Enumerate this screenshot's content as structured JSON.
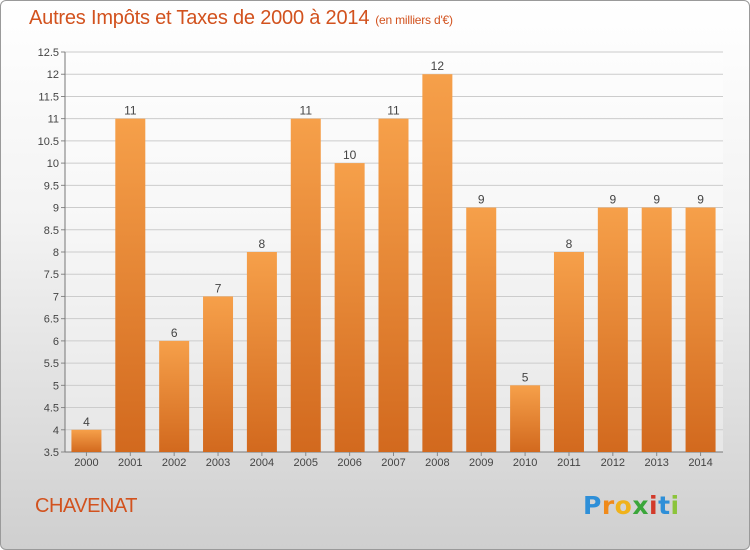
{
  "header": {
    "title": "Autres Impôts et Taxes de 2000 à 2014",
    "unit": "(en milliers d'€)"
  },
  "footer": {
    "city": "CHAVENAT",
    "logo": {
      "letters": [
        "P",
        "r",
        "o",
        "x",
        "i",
        "t",
        "i"
      ],
      "colors": [
        "#2e8fd8",
        "#f08a1a",
        "#f0b21a",
        "#3aa63a",
        "#d23a2a",
        "#2e8fd8",
        "#8cc43a"
      ]
    }
  },
  "colors": {
    "bar_top": "#f6a04a",
    "bar_bottom": "#d2691e",
    "title": "#d2521e",
    "grid": "#cccccc",
    "label": "#444444"
  },
  "chart_data": {
    "type": "bar",
    "categories": [
      "2000",
      "2001",
      "2002",
      "2003",
      "2004",
      "2005",
      "2006",
      "2007",
      "2008",
      "2009",
      "2010",
      "2011",
      "2012",
      "2013",
      "2014"
    ],
    "values": [
      4,
      11,
      6,
      7,
      8,
      11,
      10,
      11,
      12,
      9,
      5,
      8,
      9,
      9,
      9
    ],
    "data_labels": [
      "4",
      "11",
      "6",
      "7",
      "8",
      "11",
      "10",
      "11",
      "12",
      "9",
      "5",
      "8",
      "9",
      "9",
      "9"
    ],
    "y_ticks": [
      "3.5",
      "4",
      "4.5",
      "5",
      "5.5",
      "6",
      "6.5",
      "7",
      "7.5",
      "8",
      "8.5",
      "9",
      "9.5",
      "10",
      "10.5",
      "11",
      "11.5",
      "12",
      "12.5"
    ],
    "ylim": [
      3.5,
      12.5
    ],
    "grid": "horizontal",
    "xlabel": "",
    "ylabel": ""
  }
}
